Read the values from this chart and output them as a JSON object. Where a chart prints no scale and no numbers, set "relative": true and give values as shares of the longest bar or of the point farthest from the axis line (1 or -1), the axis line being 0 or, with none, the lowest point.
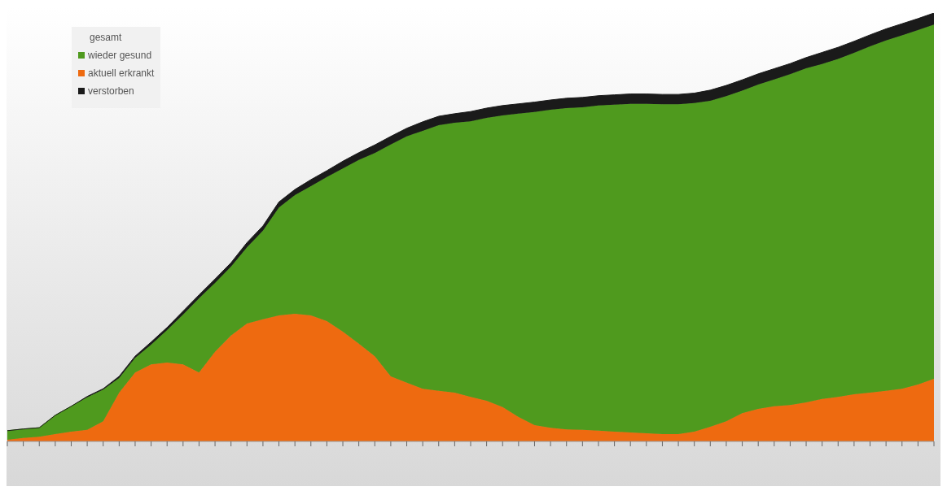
{
  "chart_data": {
    "type": "area",
    "stacked": true,
    "relative": true,
    "legend": "top left",
    "legend_title": "gesamt",
    "categories": [
      null,
      null,
      null,
      null,
      null,
      null,
      null,
      null,
      null,
      null,
      null,
      null,
      null,
      null,
      null,
      null,
      null,
      null,
      null,
      null,
      null,
      null,
      null,
      null,
      null,
      null,
      null,
      null,
      null,
      null,
      null,
      null,
      null,
      null,
      null,
      null,
      null,
      null,
      null,
      null,
      null,
      null,
      null,
      null,
      null,
      null,
      null,
      null,
      null,
      null,
      null,
      null,
      null,
      null,
      null,
      null,
      null,
      null,
      null
    ],
    "series": [
      {
        "name": "aktuell erkrankt",
        "color": "#ee6a10",
        "values": [
          0.004,
          0.008,
          0.011,
          0.017,
          0.023,
          0.027,
          0.047,
          0.114,
          0.161,
          0.18,
          0.184,
          0.18,
          0.161,
          0.209,
          0.247,
          0.275,
          0.285,
          0.294,
          0.298,
          0.294,
          0.281,
          0.256,
          0.228,
          0.199,
          0.152,
          0.137,
          0.123,
          0.118,
          0.114,
          0.104,
          0.095,
          0.08,
          0.057,
          0.038,
          0.032,
          0.028,
          0.027,
          0.025,
          0.023,
          0.021,
          0.019,
          0.017,
          0.017,
          0.023,
          0.034,
          0.047,
          0.066,
          0.076,
          0.082,
          0.085,
          0.091,
          0.099,
          0.104,
          0.11,
          0.114,
          0.118,
          0.123,
          0.133,
          0.146
        ]
      },
      {
        "name": "wieder gesund",
        "color": "#4f9a1e",
        "values": [
          0.021,
          0.021,
          0.021,
          0.044,
          0.059,
          0.076,
          0.074,
          0.034,
          0.034,
          0.046,
          0.076,
          0.116,
          0.173,
          0.161,
          0.161,
          0.178,
          0.207,
          0.252,
          0.277,
          0.302,
          0.336,
          0.381,
          0.429,
          0.474,
          0.541,
          0.575,
          0.602,
          0.62,
          0.63,
          0.643,
          0.66,
          0.681,
          0.708,
          0.731,
          0.742,
          0.75,
          0.753,
          0.759,
          0.763,
          0.767,
          0.769,
          0.77,
          0.77,
          0.767,
          0.761,
          0.759,
          0.753,
          0.757,
          0.763,
          0.772,
          0.78,
          0.782,
          0.789,
          0.797,
          0.808,
          0.818,
          0.825,
          0.827,
          0.827
        ]
      },
      {
        "name": "verstorben",
        "color": "#1a1a1a",
        "values": [
          0,
          0,
          0,
          0,
          0,
          0.002,
          0.002,
          0.004,
          0.004,
          0.006,
          0.006,
          0.008,
          0.008,
          0.009,
          0.009,
          0.011,
          0.011,
          0.013,
          0.013,
          0.015,
          0.015,
          0.017,
          0.017,
          0.019,
          0.019,
          0.019,
          0.021,
          0.021,
          0.021,
          0.023,
          0.023,
          0.023,
          0.023,
          0.023,
          0.023,
          0.023,
          0.023,
          0.023,
          0.023,
          0.023,
          0.023,
          0.023,
          0.023,
          0.023,
          0.025,
          0.025,
          0.025,
          0.025,
          0.025,
          0.025,
          0.025,
          0.027,
          0.027,
          0.027,
          0.027,
          0.027,
          0.027,
          0.027,
          0.027
        ]
      }
    ]
  }
}
